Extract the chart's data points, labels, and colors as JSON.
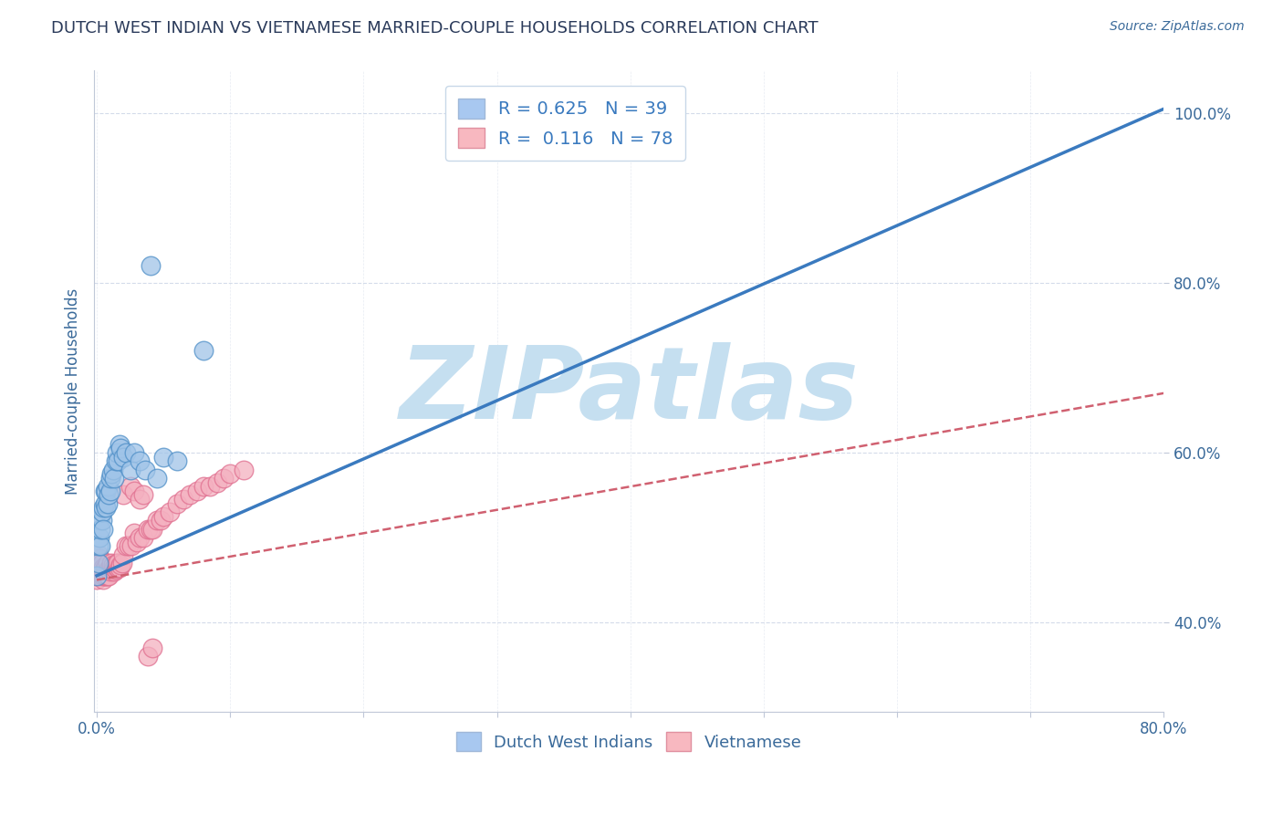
{
  "title": "DUTCH WEST INDIAN VS VIETNAMESE MARRIED-COUPLE HOUSEHOLDS CORRELATION CHART",
  "source": "Source: ZipAtlas.com",
  "ylabel": "Married-couple Households",
  "legend1_label": "R = 0.625   N = 39",
  "legend2_label": "R =  0.116   N = 78",
  "legend1_color": "#a8c8f0",
  "legend2_color": "#f8b8c0",
  "blue_line_color": "#3a7abf",
  "pink_line_color": "#d06070",
  "watermark": "ZIPatlas",
  "watermark_color": "#c5dff0",
  "blue_scatter_color": "#a0c4e8",
  "pink_scatter_color": "#f4b0c0",
  "blue_scatter_edge": "#5090c8",
  "pink_scatter_edge": "#e07090",
  "blue_x": [
    0.0,
    0.001,
    0.001,
    0.002,
    0.002,
    0.003,
    0.003,
    0.004,
    0.004,
    0.005,
    0.005,
    0.006,
    0.006,
    0.007,
    0.007,
    0.008,
    0.008,
    0.009,
    0.01,
    0.01,
    0.011,
    0.012,
    0.013,
    0.014,
    0.015,
    0.016,
    0.017,
    0.018,
    0.02,
    0.022,
    0.025,
    0.028,
    0.032,
    0.036,
    0.04,
    0.045,
    0.05,
    0.06,
    0.08
  ],
  "blue_y": [
    0.455,
    0.47,
    0.49,
    0.5,
    0.52,
    0.49,
    0.51,
    0.52,
    0.53,
    0.51,
    0.535,
    0.54,
    0.555,
    0.535,
    0.555,
    0.54,
    0.56,
    0.55,
    0.555,
    0.57,
    0.575,
    0.58,
    0.57,
    0.59,
    0.6,
    0.59,
    0.61,
    0.605,
    0.595,
    0.6,
    0.58,
    0.6,
    0.59,
    0.58,
    0.82,
    0.57,
    0.595,
    0.59,
    0.72
  ],
  "pink_x": [
    0.0,
    0.0,
    0.001,
    0.001,
    0.001,
    0.002,
    0.002,
    0.002,
    0.003,
    0.003,
    0.003,
    0.003,
    0.004,
    0.004,
    0.004,
    0.005,
    0.005,
    0.005,
    0.005,
    0.006,
    0.006,
    0.006,
    0.007,
    0.007,
    0.008,
    0.008,
    0.008,
    0.009,
    0.009,
    0.01,
    0.01,
    0.011,
    0.011,
    0.012,
    0.012,
    0.013,
    0.013,
    0.014,
    0.014,
    0.015,
    0.015,
    0.016,
    0.016,
    0.017,
    0.018,
    0.019,
    0.02,
    0.022,
    0.024,
    0.026,
    0.028,
    0.03,
    0.032,
    0.035,
    0.038,
    0.04,
    0.042,
    0.045,
    0.048,
    0.05,
    0.055,
    0.06,
    0.065,
    0.07,
    0.075,
    0.08,
    0.085,
    0.09,
    0.095,
    0.1,
    0.11,
    0.02,
    0.025,
    0.028,
    0.032,
    0.035,
    0.038,
    0.042
  ],
  "pink_y": [
    0.45,
    0.455,
    0.46,
    0.465,
    0.48,
    0.455,
    0.465,
    0.475,
    0.455,
    0.46,
    0.465,
    0.47,
    0.455,
    0.46,
    0.47,
    0.45,
    0.455,
    0.46,
    0.465,
    0.455,
    0.46,
    0.465,
    0.455,
    0.465,
    0.455,
    0.462,
    0.47,
    0.455,
    0.462,
    0.46,
    0.465,
    0.465,
    0.47,
    0.462,
    0.468,
    0.46,
    0.465,
    0.462,
    0.468,
    0.465,
    0.47,
    0.465,
    0.47,
    0.465,
    0.468,
    0.47,
    0.48,
    0.49,
    0.49,
    0.49,
    0.505,
    0.495,
    0.5,
    0.5,
    0.51,
    0.51,
    0.51,
    0.52,
    0.52,
    0.525,
    0.53,
    0.54,
    0.545,
    0.55,
    0.555,
    0.56,
    0.56,
    0.565,
    0.57,
    0.575,
    0.58,
    0.55,
    0.56,
    0.555,
    0.545,
    0.55,
    0.36,
    0.37
  ],
  "blue_trend_x": [
    0.0,
    0.8
  ],
  "blue_trend_y": [
    0.455,
    1.005
  ],
  "pink_trend_x": [
    0.0,
    0.8
  ],
  "pink_trend_y": [
    0.45,
    0.67
  ],
  "xlim": [
    -0.002,
    0.8
  ],
  "ylim": [
    0.295,
    1.05
  ],
  "ytick_vals": [
    0.4,
    0.6,
    0.8,
    1.0
  ],
  "background_color": "#ffffff",
  "grid_color": "#d0d8e8",
  "title_color": "#2a3a5a",
  "source_color": "#3a6a9a",
  "axis_label_color": "#3a6a9a",
  "tick_color": "#3a6a9a",
  "legend_text_color": "#3a7abf"
}
